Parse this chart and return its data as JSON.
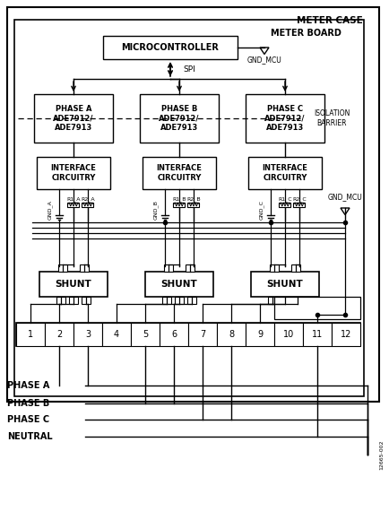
{
  "background": "#ffffff",
  "meter_case_label": "METER CASE",
  "meter_board_label": "METER BOARD",
  "isolation_barrier_label": "ISOLATION\nBARRIER",
  "microcontroller_label": "MICROCONTROLLER",
  "gnd_mcu_label": "GND_MCU",
  "spi_label": "SPI",
  "phase_labels": [
    "PHASE A\nADE7912/\nADE7913",
    "PHASE B\nADE7912/\nADE7913",
    "PHASE C\nADE7912/\nADE7913"
  ],
  "interface_labels": [
    "INTERFACE\nCIRCUITRY",
    "INTERFACE\nCIRCUITRY",
    "INTERFACE\nCIRCUITRY"
  ],
  "shunt_labels": [
    "SHUNT",
    "SHUNT",
    "SHUNT"
  ],
  "terminal_numbers": [
    "1",
    "2",
    "3",
    "4",
    "5",
    "6",
    "7",
    "8",
    "9",
    "10",
    "11",
    "12"
  ],
  "phase_line_labels": [
    "PHASE A",
    "PHASE B",
    "PHASE C",
    "NEUTRAL"
  ],
  "gnd_labels": [
    "GND_A",
    "GND_B",
    "GND_C"
  ],
  "r_labels": [
    "R1_A",
    "R2_A",
    "R1_B",
    "R2_B",
    "R1_C",
    "R2_C"
  ],
  "figure_id": "12665-002"
}
